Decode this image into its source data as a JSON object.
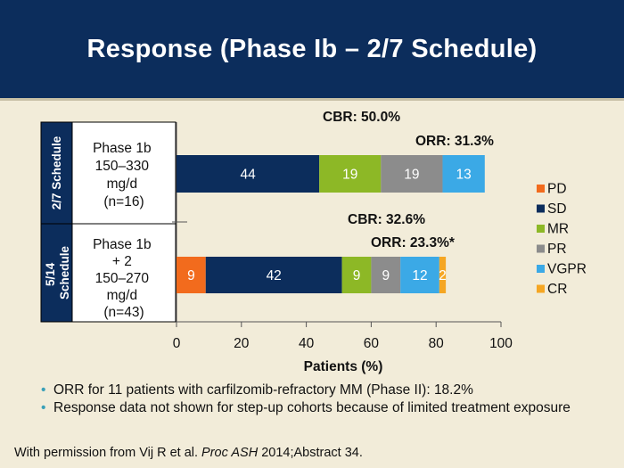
{
  "slide": {
    "title": "Response (Phase Ib – 2/7 Schedule)",
    "bullets": [
      "ORR for 11 patients with carfilzomib-refractory MM (Phase II): 18.2%",
      "Response data not shown for step-up cohorts because of limited treatment exposure"
    ],
    "footer": {
      "prefix": "With permission from Vij R et al. ",
      "journal": "Proc ASH",
      "suffix": " 2014;Abstract 34."
    }
  },
  "chart_data": {
    "type": "bar",
    "orientation": "horizontal",
    "stacked": true,
    "xlabel": "Patients (%)",
    "xlim": [
      0,
      100
    ],
    "xticks": [
      0,
      20,
      40,
      60,
      80,
      100
    ],
    "legend": {
      "placement": "right"
    },
    "categories": [
      {
        "group": "2/7 Schedule",
        "label_lines": [
          "Phase 1b",
          "150–330",
          "mg/d",
          "(n=16)"
        ],
        "cbr": "CBR: 50.0%",
        "orr": "ORR: 31.3%"
      },
      {
        "group": "5/14 Schedule",
        "group_lines": [
          "5/14",
          "Schedule"
        ],
        "label_lines": [
          "Phase 1b",
          "+ 2",
          "150–270",
          "mg/d",
          "(n=43)"
        ],
        "cbr": "CBR: 32.6%",
        "orr": "ORR: 23.3%*"
      }
    ],
    "series": [
      {
        "name": "PD",
        "color": "#f26b1d",
        "values": [
          0,
          9
        ]
      },
      {
        "name": "SD",
        "color": "#0c2d5c",
        "values": [
          44,
          42
        ]
      },
      {
        "name": "MR",
        "color": "#8db826",
        "values": [
          19,
          9
        ]
      },
      {
        "name": "PR",
        "color": "#8c8c8c",
        "values": [
          19,
          9
        ]
      },
      {
        "name": "VGPR",
        "color": "#3ba9e6",
        "values": [
          13,
          12
        ]
      },
      {
        "name": "CR",
        "color": "#f5a623",
        "values": [
          0,
          2
        ]
      }
    ]
  }
}
